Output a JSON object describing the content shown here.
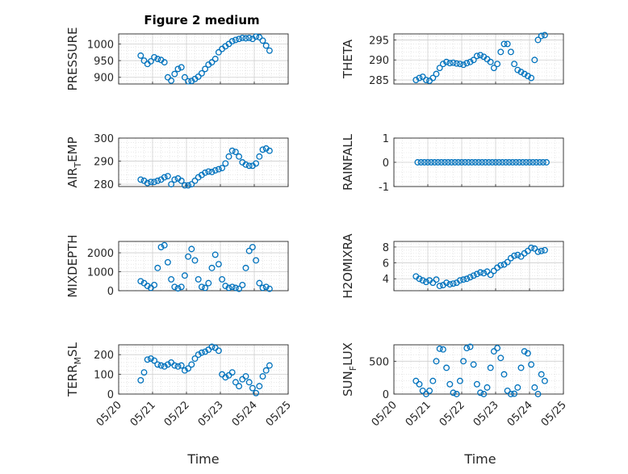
{
  "title": "Figure 2 medium",
  "xlabel": "Time",
  "colors": {
    "marker": "#0072BD",
    "grid": "#d9d9d9",
    "axis": "#262626"
  },
  "chart_data": [
    {
      "type": "scatter",
      "ylabel": "PRESSURE",
      "xticks": [
        "05/20",
        "05/21",
        "05/22",
        "05/23",
        "05/24",
        "05/25"
      ],
      "ylim": [
        880,
        1030
      ],
      "yticks": [
        900,
        950,
        1000
      ],
      "grid": true,
      "x": [
        20.65,
        20.75,
        20.85,
        20.95,
        21.05,
        21.15,
        21.25,
        21.35,
        21.45,
        21.55,
        21.65,
        21.75,
        21.85,
        21.95,
        22.05,
        22.15,
        22.25,
        22.35,
        22.45,
        22.55,
        22.65,
        22.75,
        22.85,
        22.95,
        23.05,
        23.15,
        23.25,
        23.35,
        23.45,
        23.55,
        23.65,
        23.75,
        23.85,
        23.95,
        24.05,
        24.15,
        24.25,
        24.35,
        24.45
      ],
      "y": [
        965,
        950,
        940,
        948,
        960,
        955,
        952,
        945,
        900,
        890,
        910,
        925,
        930,
        900,
        888,
        889,
        895,
        902,
        912,
        925,
        938,
        945,
        955,
        975,
        985,
        993,
        1000,
        1008,
        1012,
        1015,
        1018,
        1017,
        1018,
        1015,
        1022,
        1020,
        1010,
        995,
        980
      ]
    },
    {
      "type": "scatter",
      "ylabel": "THETA",
      "xticks": [
        "05/20",
        "05/21",
        "05/22",
        "05/23",
        "05/24",
        "05/25"
      ],
      "ylim": [
        284,
        296.5
      ],
      "yticks": [
        285,
        290,
        295
      ],
      "grid": true,
      "x": [
        20.65,
        20.75,
        20.85,
        20.95,
        21.05,
        21.15,
        21.25,
        21.35,
        21.45,
        21.55,
        21.65,
        21.75,
        21.85,
        21.95,
        22.05,
        22.15,
        22.25,
        22.35,
        22.45,
        22.55,
        22.65,
        22.75,
        22.85,
        22.95,
        23.05,
        23.15,
        23.25,
        23.35,
        23.45,
        23.55,
        23.65,
        23.75,
        23.85,
        23.95,
        24.05,
        24.15,
        24.25,
        24.35,
        24.45
      ],
      "y": [
        285,
        285.5,
        285.8,
        285,
        284.8,
        285.5,
        286.5,
        288,
        289,
        289.5,
        289.2,
        289.3,
        289.1,
        289,
        288.8,
        289.2,
        289.5,
        290,
        291,
        291.2,
        290.8,
        290.2,
        289.5,
        288,
        289,
        292,
        294,
        294,
        292,
        289,
        287.5,
        287,
        286.5,
        286,
        285.5,
        290,
        295,
        296,
        296.2
      ]
    },
    {
      "type": "scatter",
      "ylabel": "AIR_TEMP",
      "xticks": [
        "05/20",
        "05/21",
        "05/22",
        "05/23",
        "05/24",
        "05/25"
      ],
      "ylim": [
        279,
        300
      ],
      "yticks": [
        280,
        290,
        300
      ],
      "grid": true,
      "x": [
        20.65,
        20.75,
        20.85,
        20.95,
        21.05,
        21.15,
        21.25,
        21.35,
        21.45,
        21.55,
        21.65,
        21.75,
        21.85,
        21.95,
        22.05,
        22.15,
        22.25,
        22.35,
        22.45,
        22.55,
        22.65,
        22.75,
        22.85,
        22.95,
        23.05,
        23.15,
        23.25,
        23.35,
        23.45,
        23.55,
        23.65,
        23.75,
        23.85,
        23.95,
        24.05,
        24.15,
        24.25,
        24.35,
        24.45
      ],
      "y": [
        282,
        281.5,
        280.5,
        281,
        281,
        281.5,
        282,
        283,
        283.5,
        280,
        282,
        282.5,
        281.5,
        279.5,
        279.5,
        280,
        281.5,
        283,
        284,
        285,
        285.5,
        285.3,
        286,
        286.5,
        287,
        289,
        292,
        294.5,
        294,
        292,
        289.5,
        288.5,
        288,
        288,
        289,
        292,
        295,
        295.5,
        294.5
      ]
    },
    {
      "type": "scatter",
      "ylabel": "RAINFALL",
      "xticks": [
        "05/20",
        "05/21",
        "05/22",
        "05/23",
        "05/24",
        "05/25"
      ],
      "ylim": [
        -1,
        1
      ],
      "yticks": [
        -1,
        0,
        1
      ],
      "grid": true,
      "x": [
        20.7,
        20.8,
        20.9,
        21.0,
        21.1,
        21.2,
        21.3,
        21.4,
        21.5,
        21.6,
        21.7,
        21.8,
        21.9,
        22.0,
        22.1,
        22.2,
        22.3,
        22.4,
        22.5,
        22.6,
        22.7,
        22.8,
        22.9,
        23.0,
        23.1,
        23.2,
        23.3,
        23.4,
        23.5,
        23.6,
        23.7,
        23.8,
        23.9,
        24.0,
        24.1,
        24.2,
        24.3,
        24.4,
        24.5
      ],
      "y": [
        0,
        0,
        0,
        0,
        0,
        0,
        0,
        0,
        0,
        0,
        0,
        0,
        0,
        0,
        0,
        0,
        0,
        0,
        0,
        0,
        0,
        0,
        0,
        0,
        0,
        0,
        0,
        0,
        0,
        0,
        0,
        0,
        0,
        0,
        0,
        0,
        0,
        0,
        0
      ]
    },
    {
      "type": "scatter",
      "ylabel": "MIXDEPTH",
      "xticks": [
        "05/20",
        "05/21",
        "05/22",
        "05/23",
        "05/24",
        "05/25"
      ],
      "ylim": [
        0,
        2600
      ],
      "yticks": [
        0,
        1000,
        2000
      ],
      "grid": true,
      "x": [
        20.65,
        20.75,
        20.85,
        20.95,
        21.05,
        21.15,
        21.25,
        21.35,
        21.45,
        21.55,
        21.65,
        21.75,
        21.85,
        21.95,
        22.05,
        22.15,
        22.25,
        22.35,
        22.45,
        22.55,
        22.65,
        22.75,
        22.85,
        22.95,
        23.05,
        23.15,
        23.25,
        23.35,
        23.45,
        23.55,
        23.65,
        23.75,
        23.85,
        23.95,
        24.05,
        24.15,
        24.25,
        24.35,
        24.45
      ],
      "y": [
        500,
        400,
        250,
        150,
        300,
        1200,
        2300,
        2400,
        1500,
        600,
        200,
        120,
        200,
        800,
        1800,
        2200,
        1600,
        600,
        200,
        150,
        400,
        1200,
        1900,
        1400,
        600,
        250,
        150,
        200,
        150,
        100,
        300,
        1200,
        2100,
        2300,
        1600,
        400,
        150,
        200,
        100
      ]
    },
    {
      "type": "scatter",
      "ylabel": "H2OMIXRA",
      "xticks": [
        "05/20",
        "05/21",
        "05/22",
        "05/23",
        "05/24",
        "05/25"
      ],
      "ylim": [
        2.5,
        8.7
      ],
      "yticks": [
        4,
        6,
        8
      ],
      "grid": true,
      "x": [
        20.65,
        20.75,
        20.85,
        20.95,
        21.05,
        21.15,
        21.25,
        21.35,
        21.45,
        21.55,
        21.65,
        21.75,
        21.85,
        21.95,
        22.05,
        22.15,
        22.25,
        22.35,
        22.45,
        22.55,
        22.65,
        22.75,
        22.85,
        22.95,
        23.05,
        23.15,
        23.25,
        23.35,
        23.45,
        23.55,
        23.65,
        23.75,
        23.85,
        23.95,
        24.05,
        24.15,
        24.25,
        24.35,
        24.45
      ],
      "y": [
        4.3,
        4.0,
        3.8,
        3.6,
        3.8,
        3.5,
        3.9,
        3.1,
        3.2,
        3.5,
        3.3,
        3.4,
        3.5,
        3.8,
        3.9,
        4.0,
        4.2,
        4.4,
        4.6,
        4.8,
        4.7,
        4.9,
        4.5,
        5.0,
        5.4,
        5.7,
        5.8,
        6.1,
        6.6,
        6.9,
        7.0,
        6.8,
        7.2,
        7.5,
        7.9,
        7.8,
        7.4,
        7.5,
        7.6
      ]
    },
    {
      "type": "scatter",
      "ylabel": "TERR_MSL",
      "xticks": [
        "05/20",
        "05/21",
        "05/22",
        "05/23",
        "05/24",
        "05/25"
      ],
      "ylim": [
        0,
        250
      ],
      "yticks": [
        0,
        100,
        200
      ],
      "grid": true,
      "x": [
        20.65,
        20.75,
        20.85,
        20.95,
        21.05,
        21.15,
        21.25,
        21.35,
        21.45,
        21.55,
        21.65,
        21.75,
        21.85,
        21.95,
        22.05,
        22.15,
        22.25,
        22.35,
        22.45,
        22.55,
        22.65,
        22.75,
        22.85,
        22.95,
        23.05,
        23.15,
        23.25,
        23.35,
        23.45,
        23.55,
        23.65,
        23.75,
        23.85,
        23.95,
        24.05,
        24.15,
        24.25,
        24.35,
        24.45
      ],
      "y": [
        70,
        110,
        175,
        180,
        170,
        150,
        145,
        140,
        150,
        160,
        145,
        140,
        145,
        120,
        130,
        150,
        180,
        200,
        210,
        215,
        225,
        240,
        235,
        220,
        100,
        85,
        95,
        110,
        60,
        40,
        75,
        90,
        60,
        30,
        5,
        40,
        90,
        120,
        145
      ]
    },
    {
      "type": "scatter",
      "ylabel": "SUN_FLUX",
      "xticks": [
        "05/20",
        "05/21",
        "05/22",
        "05/23",
        "05/24",
        "05/25"
      ],
      "ylim": [
        0,
        750
      ],
      "yticks": [
        0,
        500
      ],
      "grid": true,
      "x": [
        20.65,
        20.75,
        20.85,
        20.95,
        21.05,
        21.15,
        21.25,
        21.35,
        21.45,
        21.55,
        21.65,
        21.75,
        21.85,
        21.95,
        22.05,
        22.15,
        22.25,
        22.35,
        22.45,
        22.55,
        22.65,
        22.75,
        22.85,
        22.95,
        23.05,
        23.15,
        23.25,
        23.35,
        23.45,
        23.55,
        23.65,
        23.75,
        23.85,
        23.95,
        24.05,
        24.15,
        24.25,
        24.35,
        24.45
      ],
      "y": [
        200,
        150,
        50,
        0,
        50,
        200,
        500,
        690,
        680,
        400,
        150,
        20,
        0,
        200,
        500,
        700,
        720,
        450,
        150,
        20,
        0,
        100,
        400,
        650,
        700,
        550,
        300,
        50,
        0,
        5,
        100,
        400,
        650,
        620,
        450,
        100,
        0,
        300,
        200
      ]
    }
  ]
}
